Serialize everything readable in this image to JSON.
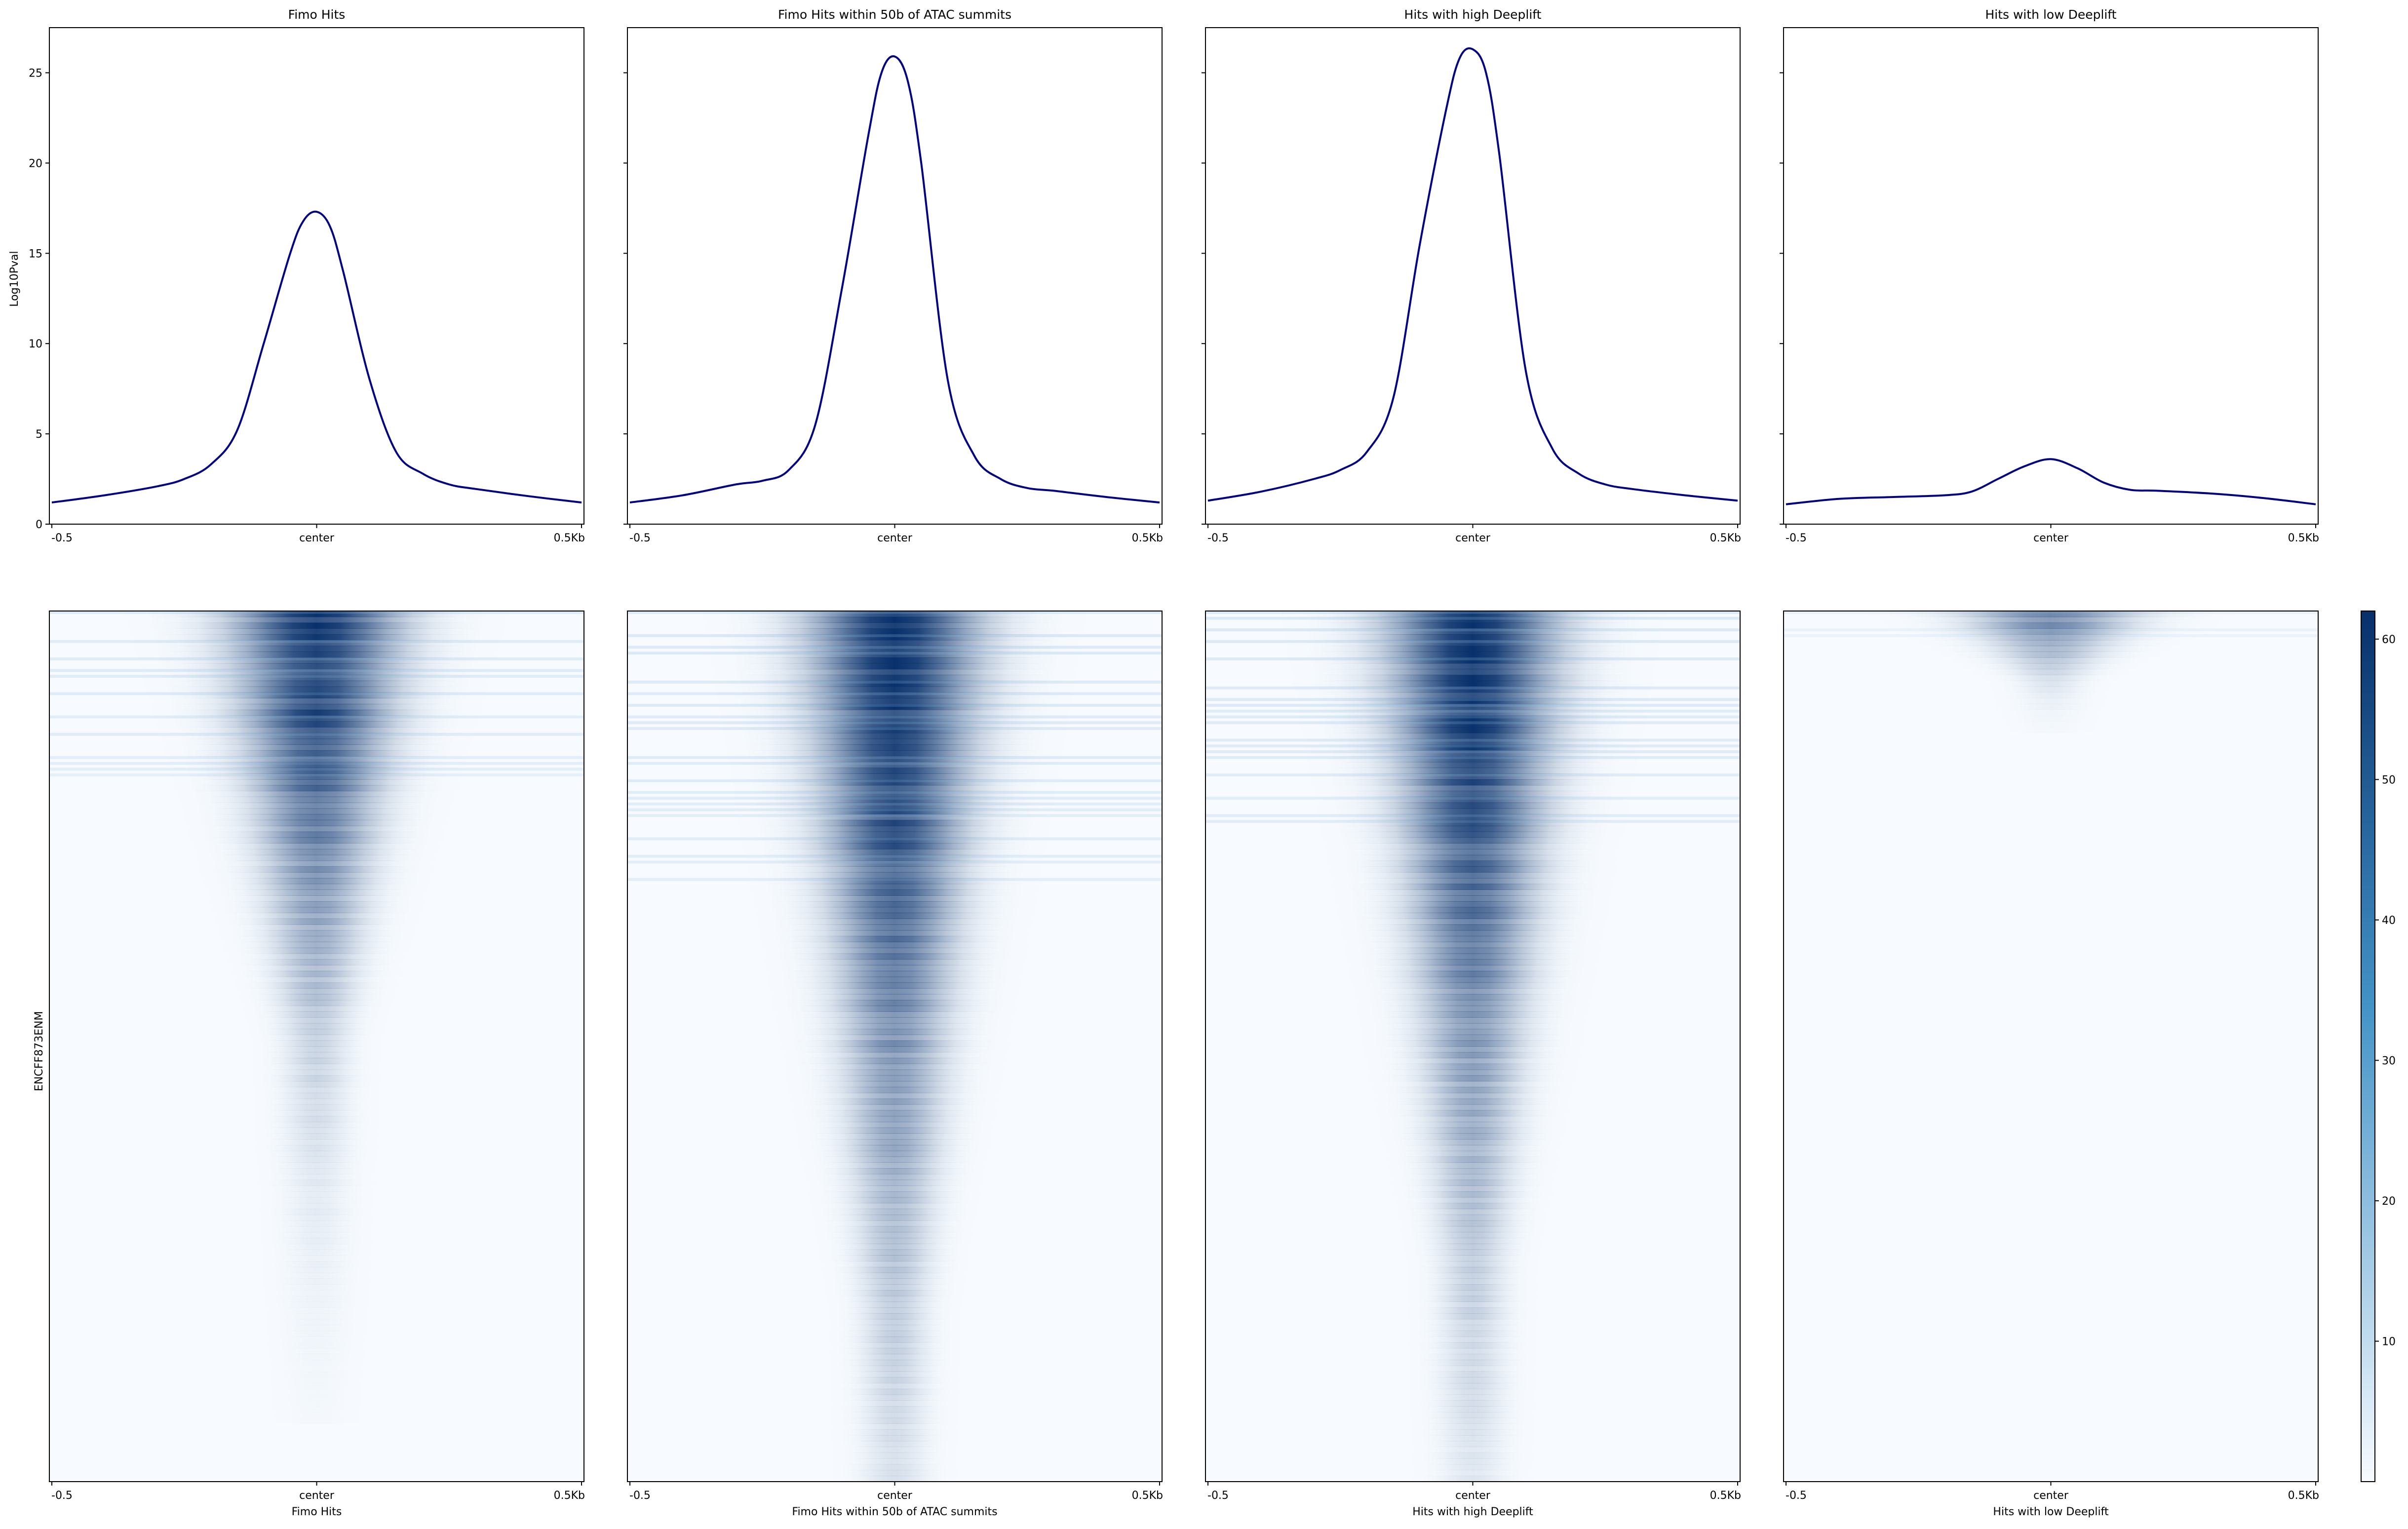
{
  "colors": {
    "profile_line": "#000080",
    "heatmap_low": "#f7fbff",
    "heatmap_high": "#08306b",
    "axis": "#000000"
  },
  "figure": {
    "ylabel": "Log10Pval",
    "heatmap_ylabel": "ENCFF873ENM",
    "colormap": "Blues"
  },
  "chart_data": [
    {
      "type": "line",
      "title": "Fimo Hits",
      "xticks": [
        "-0.5",
        "center",
        "0.5Kb"
      ],
      "ylim": [
        0,
        27.5
      ],
      "yticks": [
        0,
        5,
        10,
        15,
        20,
        25
      ],
      "x": [
        -500,
        -400,
        -300,
        -250,
        -200,
        -150,
        -100,
        -50,
        -25,
        0,
        25,
        50,
        100,
        150,
        200,
        250,
        300,
        400,
        500
      ],
      "y": [
        1.2,
        1.6,
        2.1,
        2.5,
        3.3,
        5.2,
        10.0,
        15.0,
        16.8,
        17.3,
        16.5,
        14.0,
        8.0,
        4.0,
        2.8,
        2.2,
        1.95,
        1.55,
        1.2
      ]
    },
    {
      "type": "line",
      "title": "Fimo Hits within 50b of ATAC summits",
      "xticks": [
        "-0.5",
        "center",
        "0.5Kb"
      ],
      "ylim": [
        0,
        27.5
      ],
      "yticks": [
        0,
        5,
        10,
        15,
        20,
        25
      ],
      "x": [
        -500,
        -400,
        -300,
        -250,
        -200,
        -150,
        -100,
        -50,
        -25,
        0,
        25,
        50,
        100,
        150,
        200,
        250,
        300,
        400,
        500
      ],
      "y": [
        1.2,
        1.6,
        2.2,
        2.4,
        3.0,
        5.5,
        13.0,
        21.5,
        25.0,
        25.9,
        24.5,
        20.0,
        8.0,
        3.8,
        2.5,
        2.0,
        1.85,
        1.5,
        1.2
      ]
    },
    {
      "type": "line",
      "title": "Hits with high Deeplift",
      "xticks": [
        "-0.5",
        "center",
        "0.5Kb"
      ],
      "ylim": [
        0,
        27.5
      ],
      "yticks": [
        0,
        5,
        10,
        15,
        20,
        25
      ],
      "x": [
        -500,
        -400,
        -300,
        -250,
        -200,
        -150,
        -100,
        -50,
        -25,
        0,
        25,
        50,
        100,
        150,
        200,
        250,
        300,
        400,
        500
      ],
      "y": [
        1.3,
        1.8,
        2.5,
        3.0,
        4.0,
        7.0,
        15.5,
        23.0,
        25.8,
        26.3,
        25.0,
        20.5,
        8.5,
        4.2,
        2.8,
        2.2,
        1.95,
        1.6,
        1.3
      ]
    },
    {
      "type": "line",
      "title": "Hits with low Deeplift",
      "xticks": [
        "-0.5",
        "center",
        "0.5Kb"
      ],
      "ylim": [
        0,
        27.5
      ],
      "yticks": [
        0,
        5,
        10,
        15,
        20,
        25
      ],
      "x": [
        -500,
        -400,
        -300,
        -200,
        -150,
        -100,
        -50,
        0,
        50,
        100,
        150,
        200,
        300,
        400,
        500
      ],
      "y": [
        1.1,
        1.4,
        1.5,
        1.6,
        1.8,
        2.5,
        3.2,
        3.6,
        3.1,
        2.3,
        1.9,
        1.85,
        1.7,
        1.45,
        1.1
      ]
    },
    {
      "type": "heatmap",
      "title": "Fimo Hits",
      "xlabel": "Fimo Hits",
      "xticks": [
        "-0.5",
        "center",
        "0.5Kb"
      ],
      "intensity": 0.95,
      "depth": 0.38
    },
    {
      "type": "heatmap",
      "title": "Fimo Hits within 50b of ATAC summits",
      "xlabel": "Fimo Hits within 50b of ATAC summits",
      "xticks": [
        "-0.5",
        "center",
        "0.5Kb"
      ],
      "intensity": 1.0,
      "depth": 0.62
    },
    {
      "type": "heatmap",
      "title": "Hits with high Deeplift",
      "xlabel": "Hits with high Deeplift",
      "xticks": [
        "-0.5",
        "center",
        "0.5Kb"
      ],
      "intensity": 1.0,
      "depth": 0.58
    },
    {
      "type": "heatmap",
      "title": "Hits with low Deeplift",
      "xlabel": "Hits with low Deeplift",
      "xticks": [
        "-0.5",
        "center",
        "0.5Kb"
      ],
      "intensity": 0.55,
      "depth": 0.06
    },
    {
      "type": "colorbar",
      "range": [
        0,
        62
      ],
      "ticks": [
        10,
        20,
        30,
        40,
        50,
        60
      ]
    }
  ]
}
